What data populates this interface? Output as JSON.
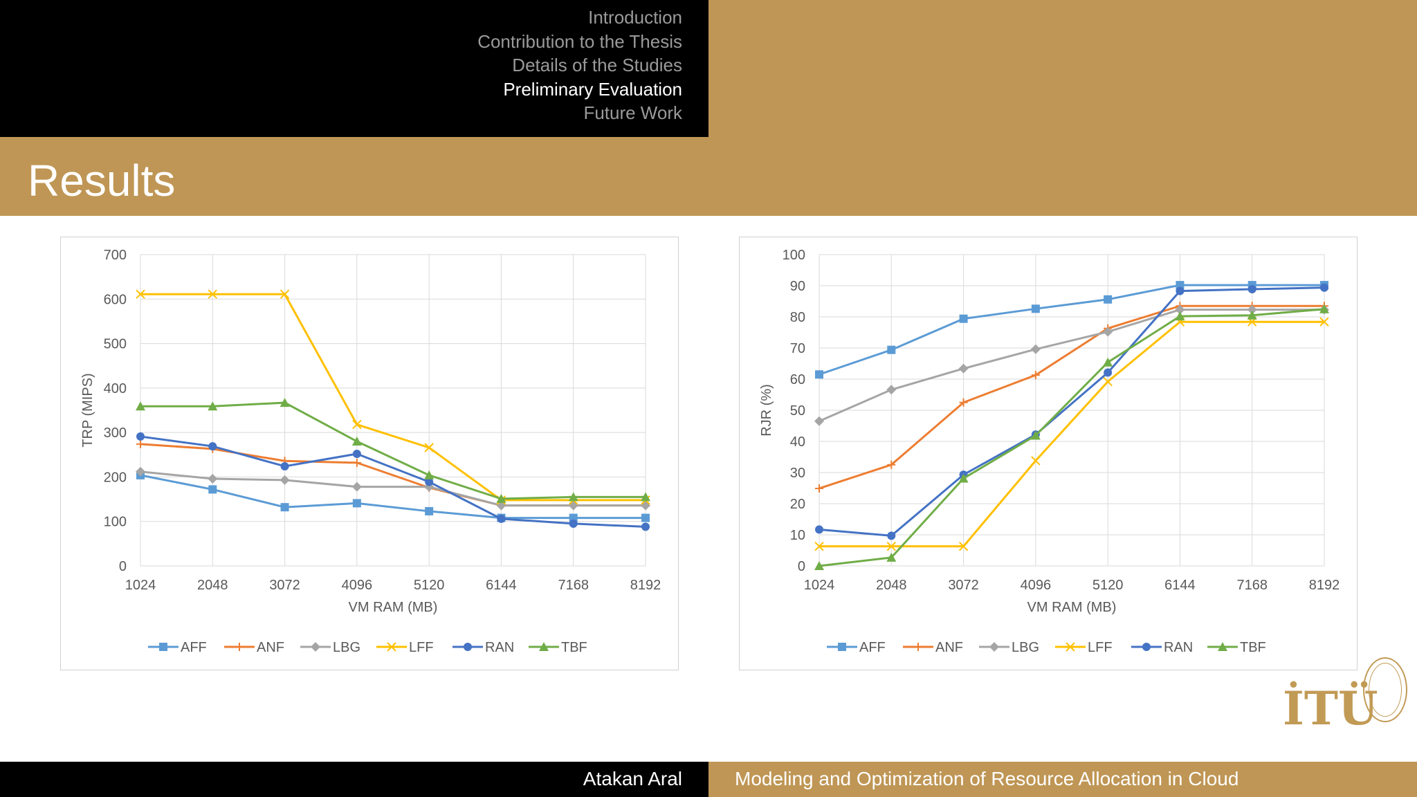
{
  "nav": {
    "items": [
      {
        "label": "Introduction",
        "active": false
      },
      {
        "label": "Contribution to the Thesis",
        "active": false
      },
      {
        "label": "Details of the Studies",
        "active": false
      },
      {
        "label": "Preliminary Evaluation",
        "active": true
      },
      {
        "label": "Future Work",
        "active": false
      }
    ]
  },
  "slide": {
    "title": "Results"
  },
  "footer": {
    "author": "Atakan Aral",
    "talk_title": "Modeling and Optimization of Resource Allocation in Cloud"
  },
  "logo": {
    "text": "İTÜ"
  },
  "colors": {
    "gold": "#bf9655",
    "black": "#000000",
    "grid": "#d9d9d9"
  },
  "chart_data": [
    {
      "type": "line",
      "xlabel": "VM RAM (MB)",
      "ylabel": "TRP (MIPS)",
      "x": [
        1024,
        2048,
        3072,
        4096,
        5120,
        6144,
        7168,
        8192
      ],
      "ylim": [
        0,
        700
      ],
      "yticks": [
        0,
        100,
        200,
        300,
        400,
        500,
        600,
        700
      ],
      "grid": true,
      "legend": "bottom",
      "series": [
        {
          "name": "AFF",
          "color": "#5b9bd5",
          "marker": "square",
          "values": [
            204,
            172,
            132,
            141,
            123,
            108,
            108,
            108
          ]
        },
        {
          "name": "ANF",
          "color": "#ed7d31",
          "marker": "plus",
          "values": [
            274,
            263,
            236,
            232,
            176,
            136,
            136,
            136
          ]
        },
        {
          "name": "LBG",
          "color": "#a5a5a5",
          "marker": "diamond",
          "values": [
            212,
            196,
            193,
            178,
            178,
            136,
            136,
            136
          ]
        },
        {
          "name": "LFF",
          "color": "#ffc000",
          "marker": "x",
          "values": [
            611,
            611,
            611,
            318,
            266,
            148,
            148,
            148
          ]
        },
        {
          "name": "RAN",
          "color": "#4472c4",
          "marker": "circle",
          "values": [
            291,
            269,
            224,
            252,
            189,
            106,
            95,
            88
          ]
        },
        {
          "name": "TBF",
          "color": "#70ad47",
          "marker": "triangle",
          "values": [
            359,
            359,
            367,
            280,
            204,
            151,
            155,
            155
          ]
        }
      ]
    },
    {
      "type": "line",
      "xlabel": "VM RAM (MB)",
      "ylabel": "RJR (%)",
      "x": [
        1024,
        2048,
        3072,
        4096,
        5120,
        6144,
        7168,
        8192
      ],
      "ylim": [
        0,
        100
      ],
      "yticks": [
        0,
        10,
        20,
        30,
        40,
        50,
        60,
        70,
        80,
        90,
        100
      ],
      "grid": true,
      "legend": "bottom",
      "series": [
        {
          "name": "AFF",
          "color": "#5b9bd5",
          "marker": "square",
          "values": [
            61.5,
            69.4,
            79.4,
            82.6,
            85.6,
            90.2,
            90.2,
            90.2
          ]
        },
        {
          "name": "ANF",
          "color": "#ed7d31",
          "marker": "plus",
          "values": [
            24.9,
            32.5,
            52.5,
            61.3,
            76.3,
            83.5,
            83.5,
            83.5
          ]
        },
        {
          "name": "LBG",
          "color": "#a5a5a5",
          "marker": "diamond",
          "values": [
            46.5,
            56.6,
            63.4,
            69.6,
            75.2,
            82.3,
            82.3,
            82.3
          ]
        },
        {
          "name": "LFF",
          "color": "#ffc000",
          "marker": "x",
          "values": [
            6.3,
            6.3,
            6.3,
            33.8,
            59.2,
            78.4,
            78.4,
            78.4
          ]
        },
        {
          "name": "RAN",
          "color": "#4472c4",
          "marker": "circle",
          "values": [
            11.7,
            9.7,
            29.3,
            42.2,
            62.1,
            88.3,
            88.9,
            89.4
          ]
        },
        {
          "name": "TBF",
          "color": "#70ad47",
          "marker": "triangle",
          "values": [
            0.0,
            2.7,
            28.1,
            41.9,
            65.4,
            80.2,
            80.5,
            82.5
          ]
        }
      ]
    }
  ]
}
